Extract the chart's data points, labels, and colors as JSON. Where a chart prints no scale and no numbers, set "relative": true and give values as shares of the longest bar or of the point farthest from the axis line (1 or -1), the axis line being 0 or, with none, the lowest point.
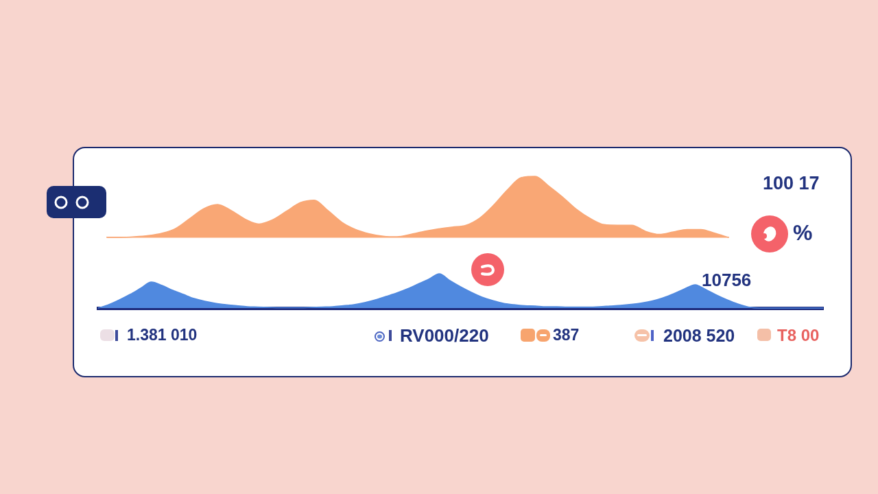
{
  "chart_data": [
    {
      "type": "area",
      "relative": true,
      "tick_labels": false,
      "color": "#f9a775",
      "categories": [
        null,
        null,
        null,
        null,
        null,
        null,
        null,
        null,
        null,
        null,
        null,
        null,
        null,
        null,
        null,
        null,
        null,
        null,
        null,
        null,
        null,
        null,
        null,
        null,
        null,
        null,
        null,
        null,
        null,
        null,
        null,
        null,
        null,
        null,
        null,
        null,
        null,
        null,
        null,
        null,
        null,
        null,
        null,
        null,
        null,
        null
      ],
      "values": [
        0,
        0,
        0.01,
        0.03,
        0.07,
        0.15,
        0.31,
        0.47,
        0.54,
        0.44,
        0.3,
        0.22,
        0.29,
        0.43,
        0.57,
        0.61,
        0.44,
        0.25,
        0.13,
        0.06,
        0.02,
        0.01,
        0.05,
        0.1,
        0.14,
        0.17,
        0.2,
        0.32,
        0.53,
        0.78,
        0.98,
        1,
        0.84,
        0.66,
        0.46,
        0.31,
        0.21,
        0.2,
        0.2,
        0.1,
        0.05,
        0.09,
        0.13,
        0.13,
        0.07,
        0
      ],
      "annotations": [
        "100 17",
        "%"
      ]
    },
    {
      "type": "area",
      "relative": true,
      "tick_labels": false,
      "color": "#5089df",
      "categories": [
        null,
        null,
        null,
        null,
        null,
        null,
        null,
        null,
        null,
        null,
        null,
        null,
        null,
        null,
        null,
        null,
        null,
        null,
        null,
        null,
        null,
        null,
        null,
        null,
        null,
        null,
        null,
        null,
        null,
        null,
        null,
        null,
        null,
        null,
        null,
        null,
        null,
        null,
        null,
        null,
        null,
        null,
        null,
        null,
        null,
        null,
        null,
        null,
        null,
        null,
        null,
        null,
        null,
        null,
        null,
        null,
        null,
        null,
        null,
        null,
        null,
        null,
        null,
        null,
        null,
        null,
        null,
        null,
        null
      ],
      "values": [
        0,
        0.1,
        0.24,
        0.4,
        0.58,
        0.76,
        0.66,
        0.52,
        0.4,
        0.28,
        0.2,
        0.14,
        0.1,
        0.07,
        0.04,
        0.03,
        0.02,
        0.01,
        0.01,
        0.01,
        0.02,
        0.03,
        0.04,
        0.07,
        0.1,
        0.16,
        0.24,
        0.34,
        0.44,
        0.56,
        0.7,
        0.84,
        1,
        0.8,
        0.62,
        0.46,
        0.32,
        0.22,
        0.14,
        0.1,
        0.07,
        0.06,
        0.04,
        0.04,
        0.03,
        0.03,
        0.03,
        0.04,
        0.06,
        0.08,
        0.11,
        0.15,
        0.21,
        0.3,
        0.42,
        0.56,
        0.68,
        0.54,
        0.38,
        0.24,
        0.12,
        0.03,
        0,
        0,
        0,
        0,
        0,
        0,
        0
      ],
      "annotations": [
        "10756",
        "1.381 010",
        "RV000/220",
        "387",
        "2008 520",
        "T8 00"
      ]
    }
  ]
}
